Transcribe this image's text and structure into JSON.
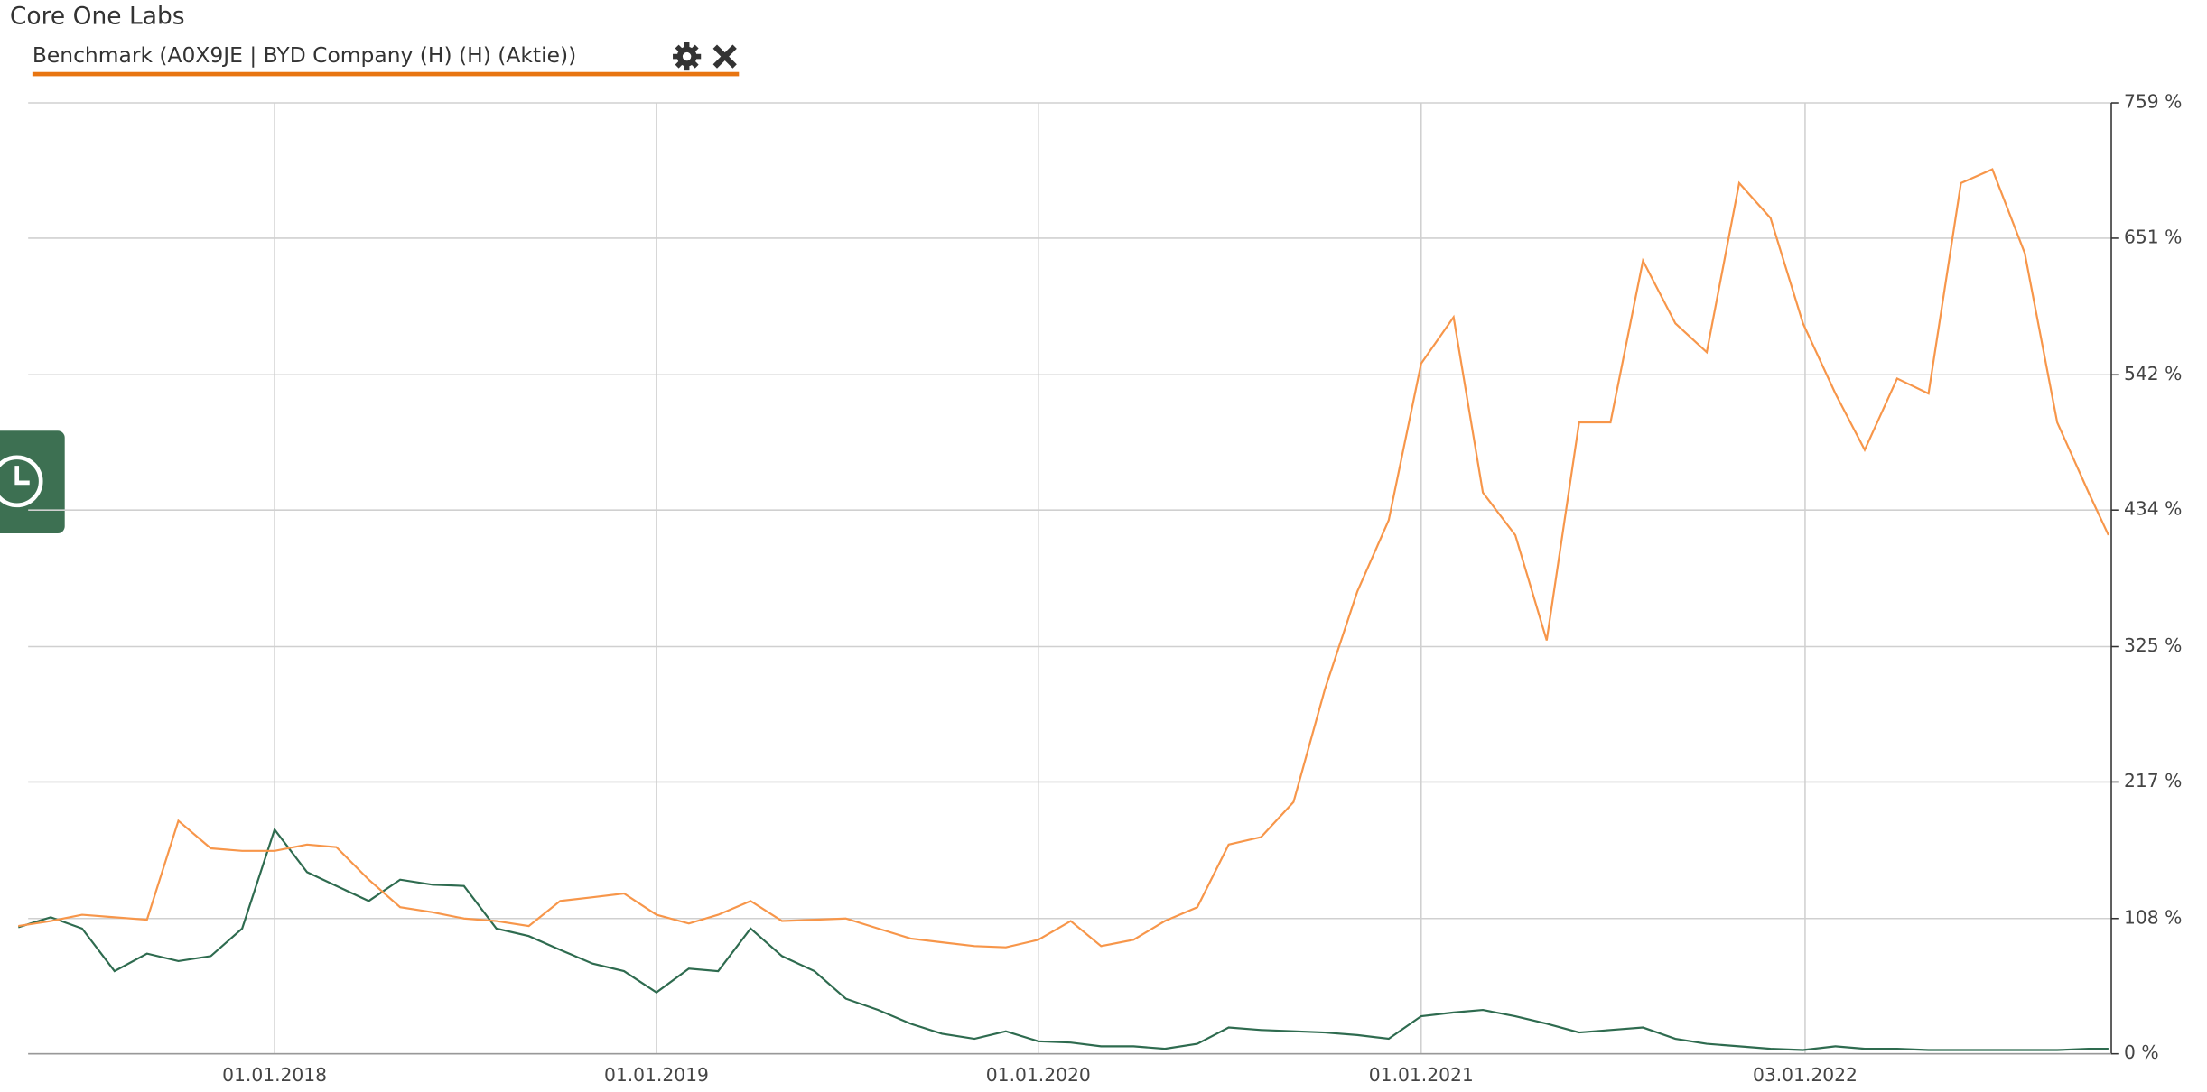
{
  "chart_data": {
    "type": "line",
    "x": [
      "01.05.2017",
      "01.06.2017",
      "01.07.2017",
      "01.08.2017",
      "01.09.2017",
      "01.10.2017",
      "01.11.2017",
      "01.12.2017",
      "01.01.2018",
      "01.02.2018",
      "01.03.2018",
      "01.04.2018",
      "01.05.2018",
      "01.06.2018",
      "01.07.2018",
      "01.08.2018",
      "01.09.2018",
      "01.10.2018",
      "01.11.2018",
      "01.12.2018",
      "01.01.2019",
      "01.02.2019",
      "01.03.2019",
      "01.04.2019",
      "01.05.2019",
      "01.06.2019",
      "01.07.2019",
      "01.08.2019",
      "01.09.2019",
      "01.10.2019",
      "01.11.2019",
      "01.12.2019",
      "01.01.2020",
      "01.02.2020",
      "01.03.2020",
      "01.04.2020",
      "01.05.2020",
      "01.06.2020",
      "01.07.2020",
      "01.08.2020",
      "01.09.2020",
      "01.10.2020",
      "01.11.2020",
      "01.12.2020",
      "01.01.2021",
      "01.02.2021",
      "01.03.2021",
      "01.04.2021",
      "01.05.2021",
      "01.06.2021",
      "01.07.2021",
      "01.08.2021",
      "01.09.2021",
      "01.10.2021",
      "01.11.2021",
      "01.12.2021",
      "01.01.2022",
      "01.02.2022",
      "01.03.2022",
      "01.04.2022",
      "01.05.2022",
      "01.06.2022",
      "01.07.2022",
      "01.08.2022",
      "01.09.2022",
      "01.10.2022",
      "20.10.2022"
    ],
    "series": [
      {
        "name": "Core One Labs",
        "color": "#2e6b4f",
        "values": [
          101,
          109,
          100,
          66,
          80,
          74,
          78,
          100,
          179,
          145,
          134,
          122,
          139,
          135,
          134,
          100,
          94,
          83,
          72,
          66,
          49,
          68,
          66,
          100,
          78,
          66,
          44,
          35,
          24,
          16,
          12,
          18,
          10,
          9,
          6,
          6,
          4,
          8,
          21,
          19,
          18,
          17,
          15,
          12,
          30,
          33,
          35,
          30,
          24,
          17,
          19,
          21,
          12,
          8,
          6,
          4,
          3,
          6,
          4,
          4,
          3,
          3,
          3,
          3,
          3,
          4,
          4
        ]
      },
      {
        "name": "Benchmark (A0X9JE | BYD Company (H) (H) (Aktie))",
        "color": "#f7964a",
        "values": [
          102,
          106,
          111,
          109,
          107,
          186,
          164,
          162,
          162,
          167,
          165,
          139,
          117,
          113,
          108,
          106,
          102,
          122,
          125,
          128,
          111,
          104,
          111,
          122,
          106,
          107,
          108,
          100,
          92,
          89,
          86,
          85,
          91,
          106,
          86,
          91,
          106,
          117,
          167,
          173,
          201,
          291,
          369,
          426,
          551,
          588,
          448,
          414,
          330,
          504,
          504,
          633,
          583,
          560,
          695,
          667,
          583,
          527,
          482,
          539,
          527,
          695,
          706,
          639,
          504,
          448,
          414
        ]
      }
    ],
    "xlim": [
      "01.05.2017",
      "20.10.2022"
    ],
    "xticks": [
      "01.01.2018",
      "01.01.2019",
      "01.01.2020",
      "01.01.2021",
      "03.01.2022"
    ],
    "ylim": [
      0,
      759
    ],
    "yticks": [
      {
        "value": 0,
        "label": "0 %"
      },
      {
        "value": 108,
        "label": "108 %"
      },
      {
        "value": 217,
        "label": "217 %"
      },
      {
        "value": 325,
        "label": "325 %"
      },
      {
        "value": 434,
        "label": "434 %"
      },
      {
        "value": 542,
        "label": "542 %"
      },
      {
        "value": 651,
        "label": "651 %"
      },
      {
        "value": 759,
        "label": "759 %"
      }
    ],
    "grid": true
  }
}
